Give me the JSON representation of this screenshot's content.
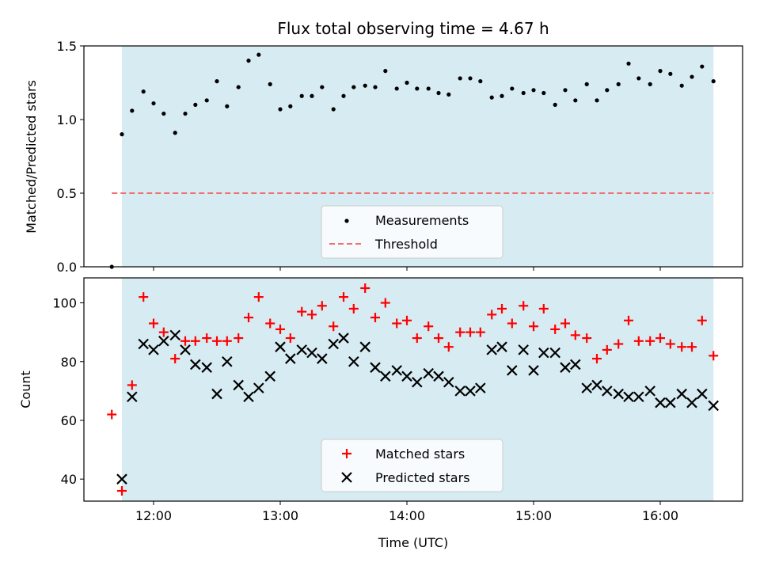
{
  "chart_data": [
    {
      "type": "scatter",
      "title": "Flux total observing time = 4.67 h",
      "ylabel": "Matched/Predicted stars",
      "xlabel": "",
      "ylim": [
        0,
        1.5
      ],
      "yticks": [
        0.0,
        0.5,
        1.0,
        1.5
      ],
      "ytick_labels": [
        "0.0",
        "0.5",
        "1.0",
        "1.5"
      ],
      "xlim_hours": [
        11.45,
        16.65
      ],
      "shaded_span_hours": [
        11.75,
        16.42
      ],
      "shade_color": "#add8e6",
      "grid": false,
      "legend_position": "lower-center",
      "threshold": {
        "name": "Threshold",
        "value": 0.5,
        "style": "dashed",
        "color": "#f07070"
      },
      "series": [
        {
          "name": "Measurements",
          "marker": "dot",
          "color": "#000000",
          "x": [
            11.67,
            11.75,
            11.83,
            11.92,
            12.0,
            12.08,
            12.17,
            12.25,
            12.33,
            12.42,
            12.5,
            12.58,
            12.67,
            12.75,
            12.83,
            12.92,
            13.0,
            13.08,
            13.17,
            13.25,
            13.33,
            13.42,
            13.5,
            13.58,
            13.67,
            13.75,
            13.83,
            13.92,
            14.0,
            14.08,
            14.17,
            14.25,
            14.33,
            14.42,
            14.5,
            14.58,
            14.67,
            14.75,
            14.83,
            14.92,
            15.0,
            15.08,
            15.17,
            15.25,
            15.33,
            15.42,
            15.5,
            15.58,
            15.67,
            15.75,
            15.83,
            15.92,
            16.0,
            16.08,
            16.17,
            16.25,
            16.33,
            16.42
          ],
          "y": [
            0.0,
            0.9,
            1.06,
            1.19,
            1.11,
            1.04,
            0.91,
            1.04,
            1.1,
            1.13,
            1.26,
            1.09,
            1.22,
            1.4,
            1.44,
            1.24,
            1.07,
            1.09,
            1.16,
            1.16,
            1.22,
            1.07,
            1.16,
            1.22,
            1.23,
            1.22,
            1.33,
            1.21,
            1.25,
            1.21,
            1.21,
            1.18,
            1.17,
            1.28,
            1.28,
            1.26,
            1.15,
            1.16,
            1.21,
            1.18,
            1.2,
            1.18,
            1.1,
            1.2,
            1.13,
            1.24,
            1.13,
            1.2,
            1.24,
            1.38,
            1.28,
            1.24,
            1.33,
            1.31,
            1.23,
            1.29,
            1.36,
            1.26
          ]
        }
      ]
    },
    {
      "type": "scatter",
      "title": "",
      "ylabel": "Count",
      "xlabel": "Time (UTC)",
      "ylim": [
        32.5,
        108.5
      ],
      "yticks": [
        40,
        60,
        80,
        100
      ],
      "ytick_labels": [
        "40",
        "60",
        "80",
        "100"
      ],
      "xticks_hours": [
        12,
        13,
        14,
        15,
        16
      ],
      "xtick_labels": [
        "12:00",
        "13:00",
        "14:00",
        "15:00",
        "16:00"
      ],
      "xlim_hours": [
        11.45,
        16.65
      ],
      "shaded_span_hours": [
        11.75,
        16.42
      ],
      "shade_color": "#add8e6",
      "grid": false,
      "legend_position": "lower-center",
      "series": [
        {
          "name": "Matched stars",
          "marker": "plus",
          "color": "#ff0000",
          "x": [
            11.67,
            11.75,
            11.83,
            11.92,
            12.0,
            12.08,
            12.17,
            12.25,
            12.33,
            12.42,
            12.5,
            12.58,
            12.67,
            12.75,
            12.83,
            12.92,
            13.0,
            13.08,
            13.17,
            13.25,
            13.33,
            13.42,
            13.5,
            13.58,
            13.67,
            13.75,
            13.83,
            13.92,
            14.0,
            14.08,
            14.17,
            14.25,
            14.33,
            14.42,
            14.5,
            14.58,
            14.67,
            14.75,
            14.83,
            14.92,
            15.0,
            15.08,
            15.17,
            15.25,
            15.33,
            15.42,
            15.5,
            15.58,
            15.67,
            15.75,
            15.83,
            15.92,
            16.0,
            16.08,
            16.17,
            16.25,
            16.33,
            16.42
          ],
          "y": [
            62,
            36,
            72,
            102,
            93,
            90,
            81,
            87,
            87,
            88,
            87,
            87,
            88,
            95,
            102,
            93,
            91,
            88,
            97,
            96,
            99,
            92,
            102,
            98,
            105,
            95,
            100,
            93,
            94,
            88,
            92,
            88,
            85,
            90,
            90,
            90,
            96,
            98,
            93,
            99,
            92,
            98,
            91,
            93,
            89,
            88,
            81,
            84,
            86,
            94,
            87,
            87,
            88,
            86,
            85,
            85,
            94,
            82
          ]
        },
        {
          "name": "Predicted stars",
          "marker": "x",
          "color": "#000000",
          "x": [
            11.67,
            11.75,
            11.83,
            11.92,
            12.0,
            12.08,
            12.17,
            12.25,
            12.33,
            12.42,
            12.5,
            12.58,
            12.67,
            12.75,
            12.83,
            12.92,
            13.0,
            13.08,
            13.17,
            13.25,
            13.33,
            13.42,
            13.5,
            13.58,
            13.67,
            13.75,
            13.83,
            13.92,
            14.0,
            14.08,
            14.17,
            14.25,
            14.33,
            14.42,
            14.5,
            14.58,
            14.67,
            14.75,
            14.83,
            14.92,
            15.0,
            15.08,
            15.17,
            15.25,
            15.33,
            15.42,
            15.5,
            15.58,
            15.67,
            15.75,
            15.83,
            15.92,
            16.0,
            16.08,
            16.17,
            16.25,
            16.33,
            16.42
          ],
          "y": [
            null,
            40,
            68,
            86,
            84,
            87,
            89,
            84,
            79,
            78,
            69,
            80,
            72,
            68,
            71,
            75,
            85,
            81,
            84,
            83,
            81,
            86,
            88,
            80,
            85,
            78,
            75,
            77,
            75,
            73,
            76,
            75,
            73,
            70,
            70,
            71,
            84,
            85,
            77,
            84,
            77,
            83,
            83,
            78,
            79,
            71,
            72,
            70,
            69,
            68,
            68,
            70,
            66,
            66,
            69,
            66,
            69,
            65
          ]
        }
      ]
    }
  ]
}
